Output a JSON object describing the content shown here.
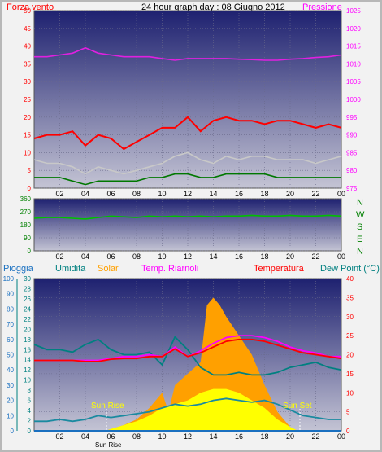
{
  "header": {
    "left_label": "Forza vento",
    "title": "24 hour graph day : 08 Giugno 2012",
    "right_label": "Pressione"
  },
  "compass_labels": [
    "N",
    "W",
    "S",
    "E",
    "N"
  ],
  "legend": {
    "pioggia": "Pioggia",
    "umidita": "Umidita",
    "solar": "Solar",
    "temp_riarnoli": "Temp. Riarnoli",
    "temperatura": "Temperatura",
    "dew_point": "Dew Point (°C)"
  },
  "annotations": {
    "sun_rise": "Sun Rise",
    "sun_set": "Sun Set",
    "sun_rise_axis": "Sun Rise"
  },
  "colors": {
    "plot_bg_top": "#1e2170",
    "plot_bg_bottom": "#c4c4d4",
    "wind_gust": "#ff0000",
    "wind_avg": "#c8c8c8",
    "wind_low": "#007800",
    "pressure": "#e020e0",
    "wind_dir": "#00c000",
    "solar": "#ffa000",
    "solar_yellow": "#ffff00",
    "temperature": "#ff0000",
    "temp_riarnoli": "#ff00ff",
    "humidity": "#008080",
    "dew_point": "#1a8aa0",
    "rain": "#1a70c0",
    "label_red": "#ff0000",
    "label_magenta": "#ff00ff",
    "label_green": "#008000",
    "label_teal": "#008080",
    "label_orange": "#ffa000"
  },
  "chart_data": [
    {
      "type": "line",
      "x_ticks": [
        "02",
        "04",
        "06",
        "08",
        "10",
        "12",
        "14",
        "16",
        "18",
        "20",
        "22",
        "00"
      ],
      "left_axis": {
        "ticks": [
          0,
          5,
          10,
          15,
          20,
          25,
          30,
          35,
          40,
          45,
          50
        ],
        "ylim": [
          0,
          50
        ]
      },
      "right_axis": {
        "ticks": [
          975,
          980,
          985,
          990,
          995,
          1000,
          1005,
          1010,
          1015,
          1020,
          1025
        ],
        "ylim": [
          975,
          1025
        ]
      },
      "grid": true,
      "series": [
        {
          "key": "wind_gust",
          "x": [
            0,
            1,
            2,
            3,
            4,
            5,
            6,
            7,
            8,
            9,
            10,
            11,
            12,
            13,
            14,
            15,
            16,
            17,
            18,
            19,
            20,
            21,
            22,
            23,
            24
          ],
          "values": [
            14,
            15,
            15,
            16,
            12,
            15,
            14,
            11,
            13,
            15,
            17,
            17,
            20,
            16,
            19,
            20,
            19,
            19,
            18,
            19,
            19,
            18,
            17,
            18,
            17
          ]
        },
        {
          "key": "wind_avg",
          "x": [
            0,
            1,
            2,
            3,
            4,
            5,
            6,
            7,
            8,
            9,
            10,
            11,
            12,
            13,
            14,
            15,
            16,
            17,
            18,
            19,
            20,
            21,
            22,
            23,
            24
          ],
          "values": [
            8,
            7,
            7,
            6,
            4,
            6,
            5,
            4,
            5,
            6,
            7,
            9,
            10,
            8,
            7,
            9,
            8,
            9,
            9,
            8,
            8,
            8,
            7,
            8,
            9
          ]
        },
        {
          "key": "wind_low",
          "x": [
            0,
            1,
            2,
            3,
            4,
            5,
            6,
            7,
            8,
            9,
            10,
            11,
            12,
            13,
            14,
            15,
            16,
            17,
            18,
            19,
            20,
            21,
            22,
            23,
            24
          ],
          "values": [
            3,
            3,
            3,
            2,
            1,
            2,
            2,
            2,
            2,
            3,
            3,
            4,
            4,
            3,
            3,
            4,
            4,
            4,
            4,
            3,
            3,
            3,
            3,
            3,
            3
          ]
        },
        {
          "key": "pressure",
          "axis": "right",
          "x": [
            0,
            1,
            2,
            3,
            4,
            5,
            6,
            7,
            8,
            9,
            10,
            11,
            12,
            13,
            14,
            15,
            16,
            17,
            18,
            19,
            20,
            21,
            22,
            23,
            24
          ],
          "values": [
            1012,
            1012,
            1012.5,
            1013,
            1014.5,
            1013,
            1012.5,
            1012,
            1012,
            1012,
            1011.5,
            1011,
            1011.5,
            1011.5,
            1011.5,
            1011.5,
            1011.3,
            1011.2,
            1011,
            1011,
            1011.3,
            1011.5,
            1011.8,
            1012,
            1012.5
          ]
        }
      ]
    },
    {
      "type": "line",
      "x_ticks": [
        "02",
        "04",
        "06",
        "08",
        "10",
        "12",
        "14",
        "16",
        "18",
        "20",
        "22",
        "00"
      ],
      "left_axis": {
        "ticks": [
          0,
          90,
          180,
          270,
          360
        ],
        "ylim": [
          0,
          360
        ]
      },
      "grid": true,
      "series": [
        {
          "key": "wind_dir",
          "x": [
            0,
            1,
            2,
            3,
            4,
            5,
            6,
            7,
            8,
            9,
            10,
            11,
            12,
            13,
            14,
            15,
            16,
            17,
            18,
            19,
            20,
            21,
            22,
            23,
            24
          ],
          "values": [
            225,
            230,
            230,
            225,
            220,
            230,
            240,
            235,
            230,
            240,
            235,
            240,
            235,
            240,
            235,
            240,
            240,
            245,
            240,
            240,
            245,
            240,
            240,
            245,
            240
          ]
        }
      ]
    },
    {
      "type": "area",
      "x_ticks": [
        "02",
        "04",
        "06",
        "08",
        "10",
        "12",
        "14",
        "16",
        "18",
        "20",
        "22",
        "00"
      ],
      "axes": {
        "pioggia": {
          "ticks": [
            0,
            10,
            20,
            30,
            40,
            50,
            60,
            70,
            80,
            90,
            100
          ],
          "ylim": [
            0,
            100
          ]
        },
        "umidita": {
          "ticks": [
            0,
            2,
            4,
            6,
            8,
            10,
            12,
            14,
            16,
            18,
            20,
            22,
            24,
            26,
            28,
            30
          ],
          "ylim": [
            0,
            30
          ]
        },
        "temperatura": {
          "ticks": [
            0,
            5,
            10,
            15,
            20,
            25,
            30,
            35,
            40
          ],
          "ylim": [
            0,
            40
          ]
        }
      },
      "grid": true,
      "series": [
        {
          "key": "solar",
          "axis": "temperatura",
          "x": [
            5.6,
            6,
            7,
            8,
            9,
            10,
            10.5,
            11,
            12,
            13,
            13.5,
            14,
            14.5,
            15,
            16,
            17,
            18,
            19,
            19.5,
            20,
            20.6
          ],
          "values": [
            0,
            0.5,
            1.5,
            3,
            6,
            10,
            5,
            12,
            15,
            18,
            33,
            35,
            33,
            30,
            25,
            20,
            12,
            5,
            3,
            1,
            0
          ]
        },
        {
          "key": "solar_yellow",
          "axis": "temperatura",
          "x": [
            5.6,
            6,
            7,
            8,
            9,
            10,
            11,
            12,
            13,
            14,
            15,
            16,
            17,
            18,
            19,
            20,
            20.6
          ],
          "values": [
            0,
            0.5,
            1.5,
            2.5,
            4,
            6,
            7,
            8,
            10,
            11,
            11,
            10,
            8,
            6,
            3,
            1,
            0
          ]
        },
        {
          "key": "temperatura",
          "axis": "temperatura",
          "x": [
            0,
            1,
            2,
            3,
            4,
            5,
            6,
            7,
            8,
            9,
            10,
            11,
            12,
            13,
            14,
            15,
            16,
            17,
            18,
            19,
            20,
            21,
            22,
            23,
            24
          ],
          "values": [
            18.5,
            18.5,
            18.5,
            18.5,
            18.2,
            18.2,
            18.8,
            19,
            19,
            19.5,
            19.5,
            21.5,
            19.5,
            20.5,
            22,
            23.5,
            24,
            24,
            23.5,
            22.5,
            21.5,
            20.5,
            20,
            19.5,
            19
          ]
        },
        {
          "key": "temp_riarnoli",
          "axis": "temperatura",
          "x": [
            0,
            1,
            2,
            3,
            4,
            5,
            6,
            7,
            8,
            9,
            10,
            11,
            12,
            13,
            14,
            15,
            16,
            17,
            18,
            19,
            20,
            21,
            22,
            23,
            24
          ],
          "values": [
            18.5,
            18.5,
            18.5,
            18.5,
            18.5,
            18.5,
            19,
            19.5,
            19.5,
            20,
            19.5,
            22,
            19.5,
            21,
            23,
            24.5,
            25,
            25,
            24.5,
            23.5,
            22,
            21,
            20.5,
            19.5,
            19.5
          ]
        },
        {
          "key": "umidita",
          "axis": "umidita",
          "x": [
            0,
            1,
            2,
            3,
            4,
            5,
            6,
            7,
            8,
            9,
            10,
            11,
            12,
            13,
            14,
            15,
            16,
            17,
            18,
            19,
            20,
            21,
            22,
            23,
            24
          ],
          "values": [
            17,
            16,
            16,
            15.5,
            17,
            18,
            16,
            15,
            15,
            15.5,
            13,
            18.5,
            16,
            12.5,
            11,
            11,
            11.5,
            11,
            11,
            11.5,
            12.5,
            13,
            13.5,
            12.5,
            12
          ]
        },
        {
          "key": "dew_point",
          "axis": "temperatura",
          "x": [
            0,
            1,
            2,
            3,
            4,
            5,
            6,
            7,
            8,
            9,
            10,
            11,
            12,
            13,
            14,
            15,
            16,
            17,
            18,
            19,
            20,
            21,
            22,
            23,
            24
          ],
          "values": [
            2.5,
            2.5,
            3,
            2.5,
            3,
            4,
            3.5,
            4,
            4.5,
            5,
            6,
            7,
            6.5,
            7,
            8,
            8.5,
            8,
            7.5,
            8,
            7,
            5.5,
            4,
            3.5,
            3,
            3
          ]
        },
        {
          "key": "pioggia",
          "axis": "pioggia",
          "x": [
            0,
            24
          ],
          "values": [
            0,
            0
          ]
        }
      ]
    }
  ]
}
